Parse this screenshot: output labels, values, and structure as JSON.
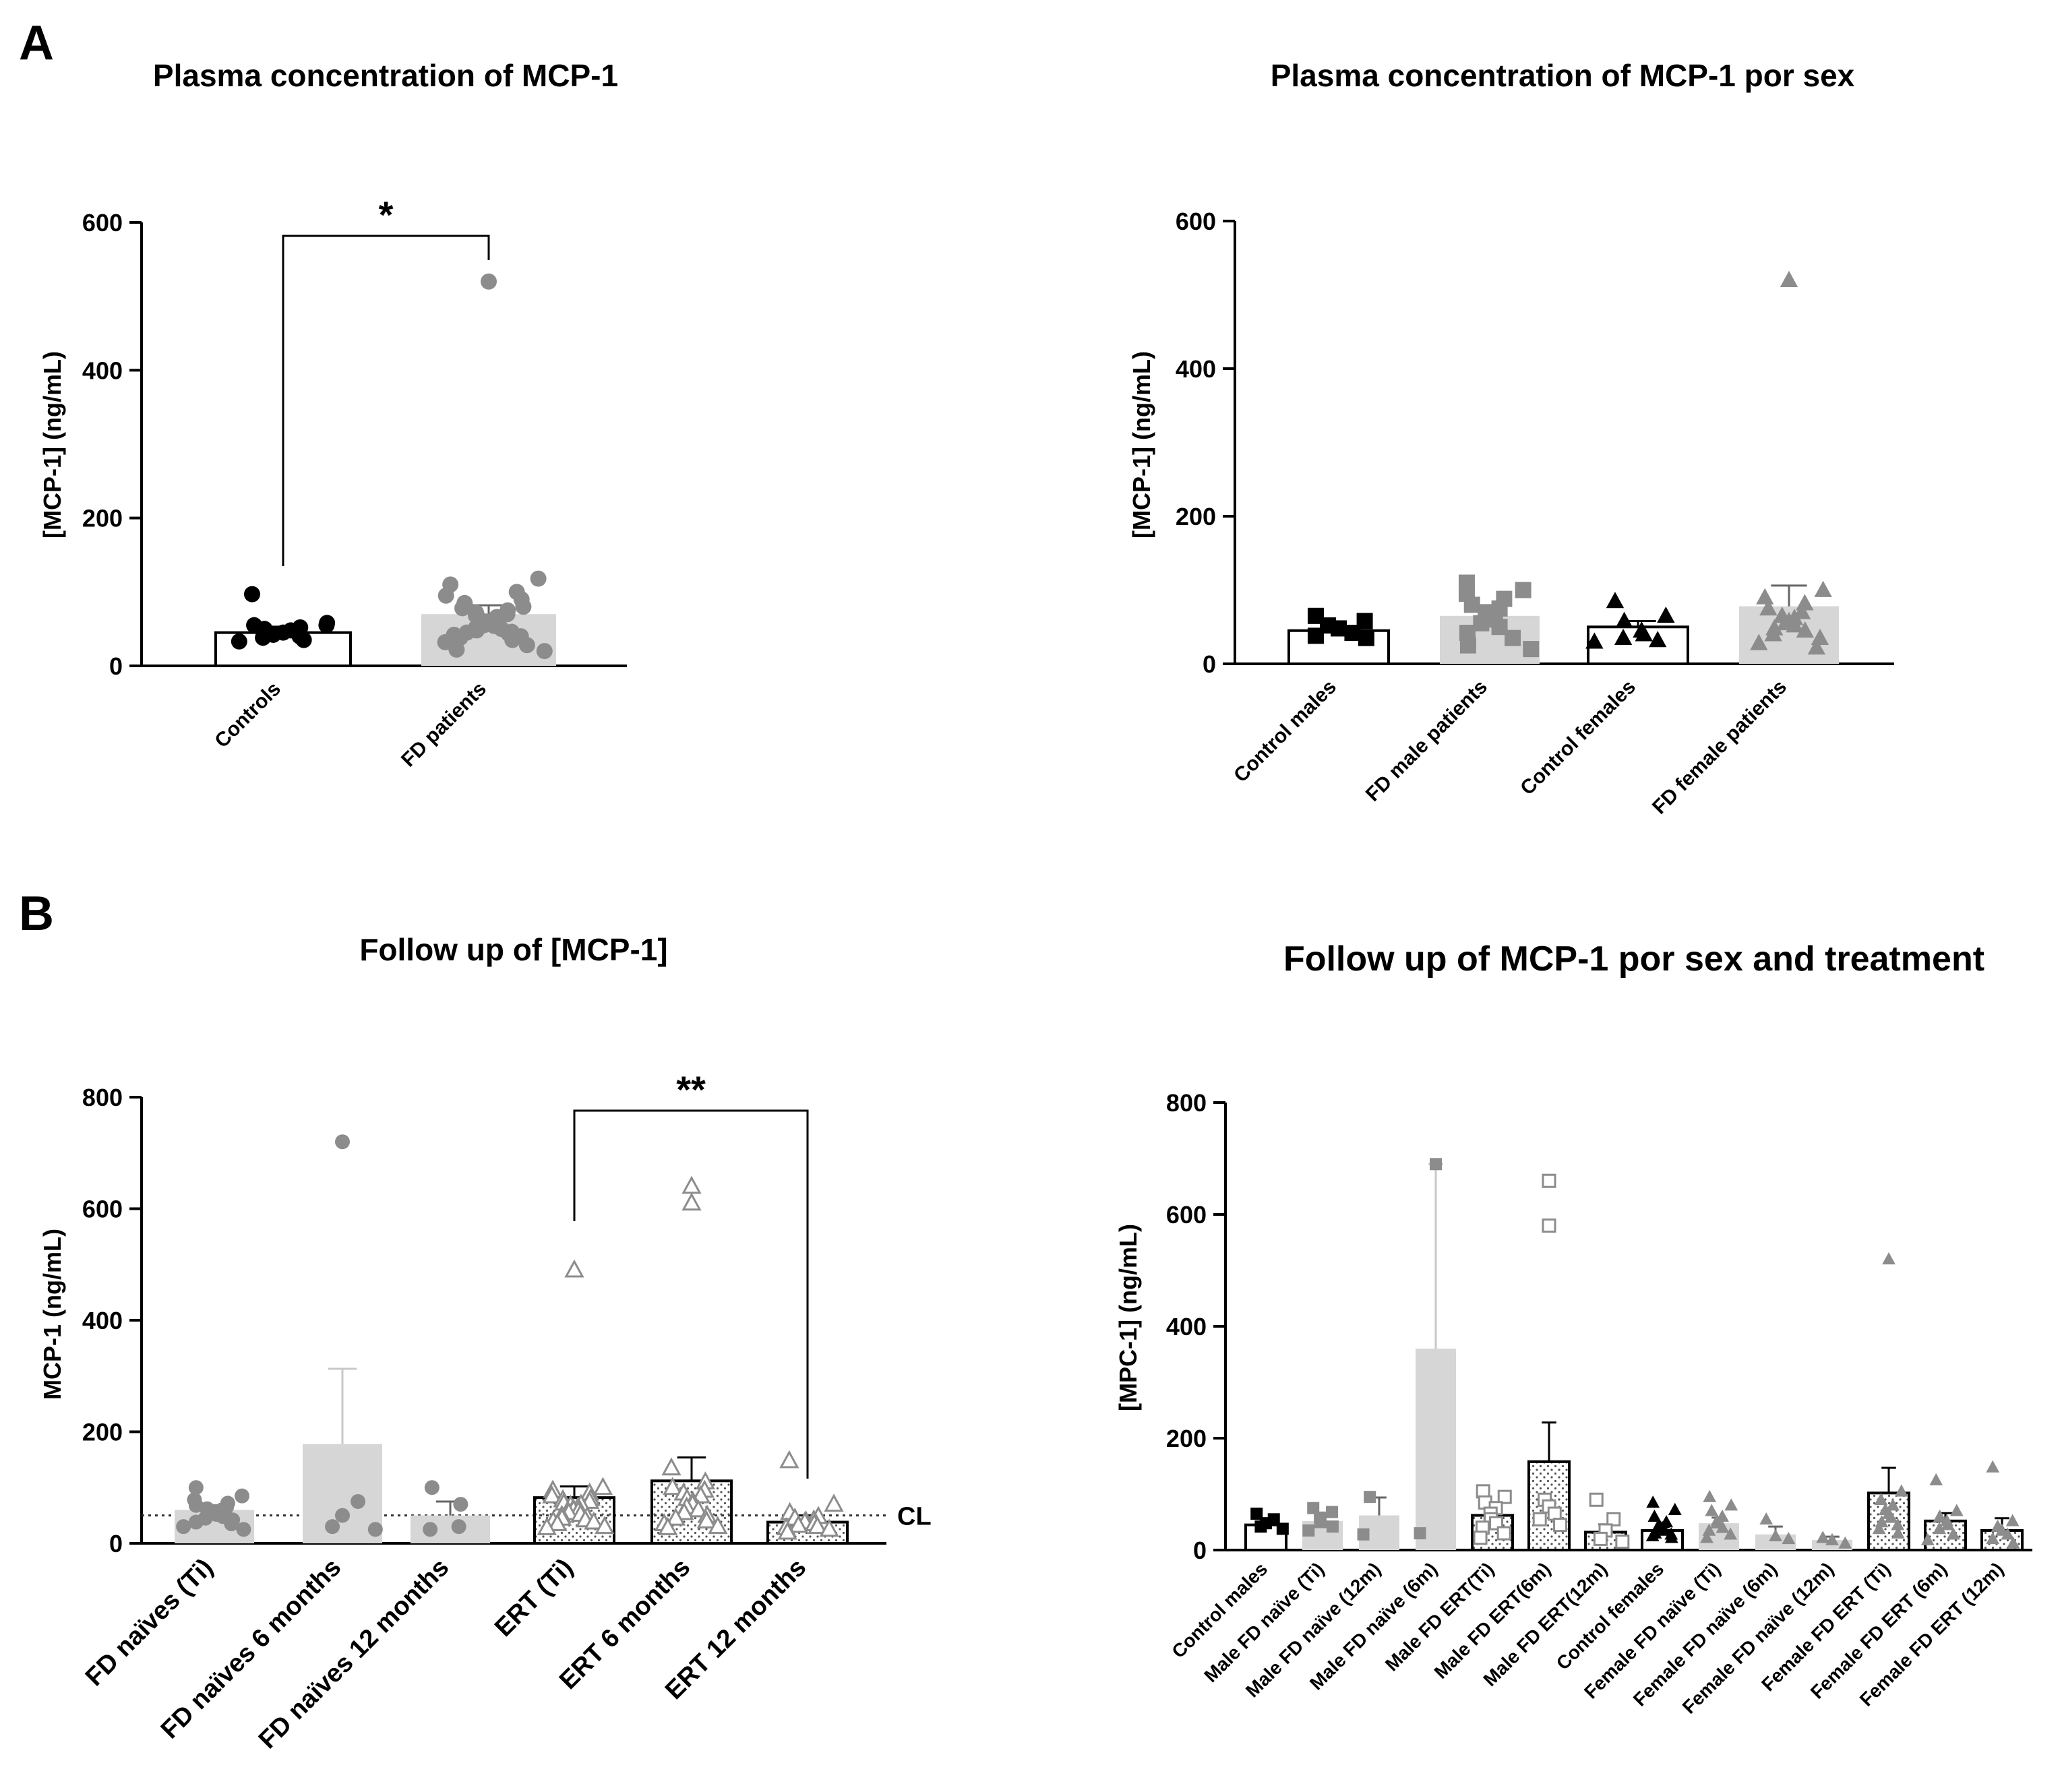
{
  "panels": {
    "A": "A",
    "B": "B"
  },
  "colors": {
    "black": "#000000",
    "gray": "#8c8c8c",
    "lightgray": "#d6d6d6",
    "bar_outline_gray": "#b0b0b0"
  },
  "chart_data": [
    {
      "id": "c1",
      "panel": "A",
      "type": "bar",
      "title": "Plasma concentration of MCP-1",
      "ylabel": "[MCP-1] (ng/mL)",
      "xlabel": "",
      "ylim": [
        0,
        600
      ],
      "yticks": [
        0,
        200,
        400,
        600
      ],
      "categories": [
        "Controls",
        "FD patients"
      ],
      "means": [
        45,
        70
      ],
      "errors": [
        8,
        12
      ],
      "bar_style": [
        "outline",
        "gray-fill"
      ],
      "marker": [
        "circle-black",
        "circle-gray"
      ],
      "points": [
        [
          97,
          58,
          55,
          52,
          50,
          48,
          45,
          42,
          40,
          38,
          35,
          33,
          55
        ],
        [
          520,
          118,
          110,
          100,
          95,
          90,
          85,
          80,
          78,
          75,
          72,
          70,
          68,
          66,
          64,
          62,
          60,
          58,
          56,
          55,
          54,
          52,
          50,
          48,
          46,
          45,
          44,
          42,
          40,
          38,
          35,
          32,
          28,
          22,
          20
        ]
      ],
      "significance": {
        "from": 0,
        "to": 1,
        "label": "*"
      }
    },
    {
      "id": "c2",
      "panel": "A",
      "type": "bar",
      "title": "Plasma concentration of MCP-1 por sex",
      "ylabel": "[MCP-1] (ng/mL)",
      "xlabel": "",
      "ylim": [
        0,
        600
      ],
      "yticks": [
        0,
        200,
        400,
        600
      ],
      "categories": [
        "Control males",
        "FD male patients",
        "Control females",
        "FD female patients"
      ],
      "means": [
        45,
        65,
        50,
        78
      ],
      "errors": [
        6,
        14,
        8,
        28
      ],
      "bar_style": [
        "outline",
        "gray-fill",
        "outline",
        "gray-fill"
      ],
      "marker": [
        "square-black",
        "square-gray",
        "triangle-black",
        "triangle-gray"
      ],
      "points": [
        [
          65,
          58,
          52,
          48,
          42,
          38,
          35
        ],
        [
          110,
          100,
          95,
          88,
          80,
          75,
          70,
          65,
          60,
          55,
          50,
          42,
          35,
          25,
          20
        ],
        [
          85,
          65,
          58,
          45,
          40,
          35,
          32,
          30
        ],
        [
          520,
          100,
          90,
          82,
          75,
          70,
          65,
          62,
          58,
          55,
          52,
          48,
          45,
          40,
          35,
          28,
          22
        ]
      ]
    },
    {
      "id": "c3",
      "panel": "B",
      "type": "bar",
      "title": "Follow up of [MCP-1]",
      "ylabel": "MCP-1 (ng/mL)",
      "xlabel": "",
      "ylim": [
        0,
        800
      ],
      "yticks": [
        0,
        200,
        400,
        600,
        800
      ],
      "categories": [
        "FD naïves (Ti)",
        "FD naïves 6 months",
        "FD naïves 12 months",
        "ERT (Ti)",
        "ERT 6 months",
        "ERT 12 months"
      ],
      "means": [
        60,
        178,
        50,
        82,
        112,
        38
      ],
      "errors": [
        8,
        135,
        25,
        20,
        42,
        12
      ],
      "bar_style": [
        "gray-fill",
        "gray-fill",
        "gray-fill",
        "outline-dots",
        "outline-dots",
        "outline-dots"
      ],
      "marker": [
        "circle-gray",
        "circle-gray",
        "circle-gray",
        "triangle-open",
        "triangle-open",
        "triangle-open"
      ],
      "points": [
        [
          100,
          85,
          78,
          72,
          68,
          65,
          62,
          60,
          58,
          55,
          52,
          50,
          48,
          45,
          42,
          38,
          35,
          30,
          25
        ],
        [
          720,
          75,
          50,
          30,
          25
        ],
        [
          100,
          70,
          30,
          25
        ],
        [
          490,
          100,
          95,
          90,
          85,
          80,
          78,
          75,
          72,
          70,
          68,
          65,
          62,
          60,
          58,
          55,
          52,
          50,
          48,
          45,
          42,
          40,
          38,
          35,
          30,
          28
        ],
        [
          640,
          610,
          135,
          110,
          100,
          95,
          90,
          85,
          80,
          75,
          70,
          65,
          60,
          55,
          50,
          45,
          40,
          35,
          30,
          28
        ],
        [
          148,
          70,
          55,
          48,
          45,
          42,
          40,
          38,
          35,
          32,
          30,
          28,
          25,
          20
        ]
      ],
      "reference_line": {
        "value": 50,
        "label": "CL"
      },
      "significance": {
        "from": 3,
        "to": 5,
        "label": "**"
      }
    },
    {
      "id": "c4",
      "panel": "B",
      "type": "bar",
      "title": "Follow up of MCP-1 por sex and treatment",
      "ylabel": "[MPC-1] (ng/mL)",
      "xlabel": "",
      "ylim": [
        0,
        800
      ],
      "yticks": [
        0,
        200,
        400,
        600,
        800
      ],
      "categories": [
        "Control males",
        "Male FD naïve (Ti)",
        "Male FD naïve (12m)",
        "Male FD naïve (6m)",
        "Male FD ERT(Ti)",
        "Male FD ERT(6m)",
        "Male FD ERT(12m)",
        "Control females",
        "Female FD naïve (Ti)",
        "Female FD naïve (6m)",
        "Female FD naïve (12m)",
        "Female FD ERT (Ti)",
        "Female FD ERT (6m)",
        "Female FD ERT (12m)"
      ],
      "means": [
        45,
        52,
        62,
        360,
        62,
        158,
        32,
        35,
        48,
        28,
        18,
        102,
        52,
        35
      ],
      "errors": [
        6,
        10,
        32,
        330,
        14,
        70,
        14,
        6,
        10,
        14,
        6,
        45,
        14,
        22
      ],
      "bar_style": [
        "outline",
        "gray-fill",
        "gray-fill",
        "gray-fill",
        "outline-dots",
        "outline-dots",
        "outline-dots",
        "outline",
        "gray-fill",
        "gray-fill",
        "gray-fill",
        "outline-dots",
        "outline-dots",
        "outline-dots"
      ],
      "marker": [
        "square-black",
        "square-gray",
        "square-gray",
        "square-gray",
        "square-open",
        "square-open",
        "square-open",
        "triangle-black",
        "triangle-gray",
        "triangle-gray",
        "triangle-gray",
        "triangle-gray",
        "triangle-gray",
        "triangle-gray"
      ],
      "points": [
        [
          65,
          55,
          48,
          42,
          38
        ],
        [
          75,
          68,
          58,
          50,
          42,
          35
        ],
        [
          95,
          28
        ],
        [
          690,
          30
        ],
        [
          105,
          95,
          85,
          75,
          65,
          55,
          48,
          40,
          30,
          22
        ],
        [
          660,
          580,
          90,
          78,
          65,
          55,
          45
        ],
        [
          90,
          55,
          35,
          20,
          15
        ],
        [
          85,
          72,
          60,
          50,
          45,
          40,
          35,
          30,
          28,
          25,
          22
        ],
        [
          95,
          80,
          70,
          60,
          52,
          48,
          40,
          35,
          28,
          22
        ],
        [
          55,
          25,
          20
        ],
        [
          22,
          18,
          12
        ],
        [
          520,
          105,
          90,
          80,
          72,
          65,
          58,
          50,
          45,
          38,
          30
        ],
        [
          125,
          70,
          60,
          52,
          45,
          38,
          28,
          18
        ],
        [
          148,
          52,
          42,
          35,
          28,
          20,
          12
        ]
      ]
    }
  ]
}
